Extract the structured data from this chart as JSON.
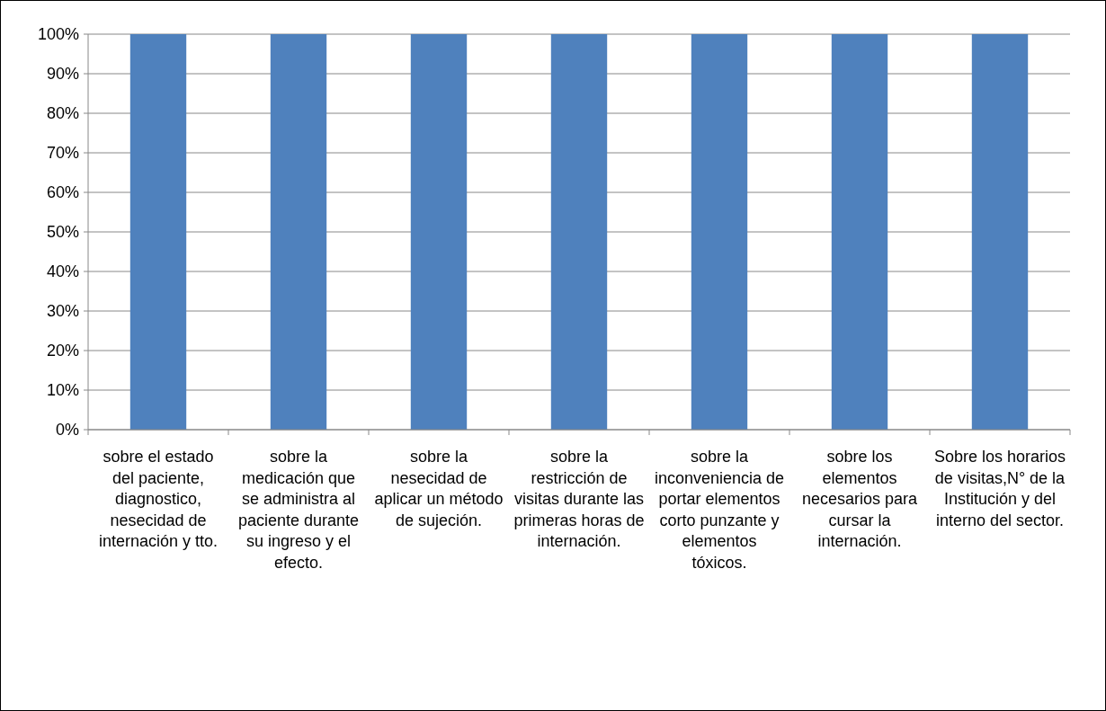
{
  "chart_data": {
    "type": "bar",
    "categories": [
      "sobre el estado del paciente, diagnostico, nesecidad de internación y tto.",
      "sobre la medicación que se administra al paciente durante su ingreso y el efecto.",
      "sobre la nesecidad de aplicar un método de sujeción.",
      "sobre la restricción de visitas durante las primeras horas de internación.",
      "sobre la inconveniencia de portar elementos corto punzante y elementos tóxicos.",
      "sobre los elementos necesarios para cursar la internación.",
      "Sobre los horarios de visitas,N° de la Institución y del interno del sector."
    ],
    "values": [
      100,
      100,
      100,
      100,
      100,
      100,
      100
    ],
    "color": "#4f81bd",
    "ylim": [
      0,
      100
    ],
    "yticks": [
      {
        "value": 0,
        "label": "0%"
      },
      {
        "value": 10,
        "label": "10%"
      },
      {
        "value": 20,
        "label": "20%"
      },
      {
        "value": 30,
        "label": "30%"
      },
      {
        "value": 40,
        "label": "40%"
      },
      {
        "value": 50,
        "label": "50%"
      },
      {
        "value": 60,
        "label": "60%"
      },
      {
        "value": 70,
        "label": "70%"
      },
      {
        "value": 80,
        "label": "80%"
      },
      {
        "value": 90,
        "label": "90%"
      },
      {
        "value": 100,
        "label": "100%"
      }
    ],
    "grid": "y"
  }
}
